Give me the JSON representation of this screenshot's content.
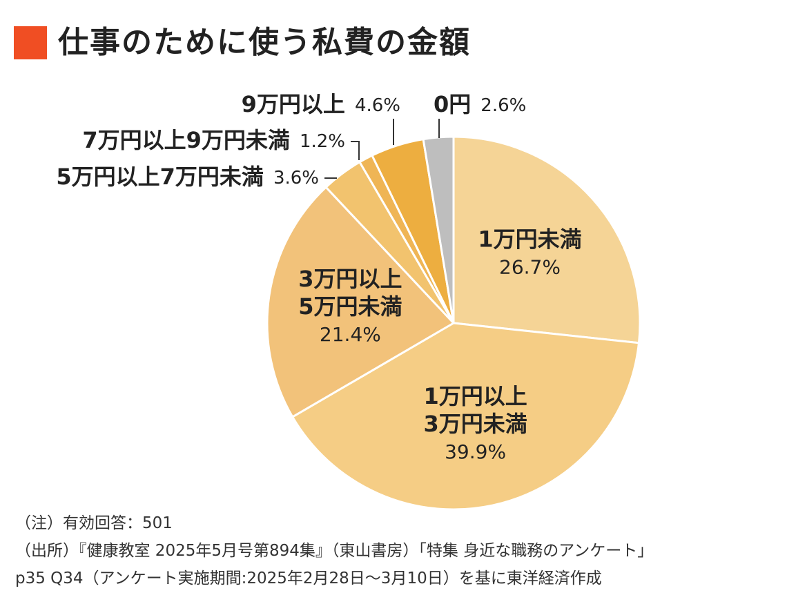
{
  "title": "仕事のために使う私費の金額",
  "colors": {
    "title_marker": "#F04E23",
    "slice_lightest": "#F5D496",
    "slice_light": "#F5CD85",
    "slice_mid": "#F2C27A",
    "slice_midorange": "#F2C36E",
    "slice_orange": "#EFB555",
    "slice_deep": "#EDAE40",
    "slice_gray": "#BEBEBE",
    "text": "#222222"
  },
  "chart_data": {
    "type": "pie",
    "title": "仕事のために使う私費の金額",
    "start": "12 o'clock, clockwise",
    "slices": [
      {
        "label": "1万円未満",
        "label_lines": [
          "1万円未満"
        ],
        "value": 26.7,
        "value_text": "26.7%",
        "color": "#F5D496",
        "label_position": "inside"
      },
      {
        "label": "1万円以上3万円未満",
        "label_lines": [
          "1万円以上",
          "3万円未満"
        ],
        "value": 39.9,
        "value_text": "39.9%",
        "color": "#F5CD85",
        "label_position": "inside"
      },
      {
        "label": "3万円以上5万円未満",
        "label_lines": [
          "3万円以上",
          "5万円未満"
        ],
        "value": 21.4,
        "value_text": "21.4%",
        "color": "#F2C27A",
        "label_position": "inside"
      },
      {
        "label": "5万円以上7万円未満",
        "label_lines": [
          "5万円以上7万円未満"
        ],
        "value": 3.6,
        "value_text": "3.6%",
        "color": "#F2C36E",
        "label_position": "outside"
      },
      {
        "label": "7万円以上9万円未満",
        "label_lines": [
          "7万円以上9万円未満"
        ],
        "value": 1.2,
        "value_text": "1.2%",
        "color": "#EFB555",
        "label_position": "outside"
      },
      {
        "label": "9万円以上",
        "label_lines": [
          "9万円以上"
        ],
        "value": 4.6,
        "value_text": "4.6%",
        "color": "#EDAE40",
        "label_position": "outside"
      },
      {
        "label": "0円",
        "label_lines": [
          "0円"
        ],
        "value": 2.6,
        "value_text": "2.6%",
        "color": "#BEBEBE",
        "label_position": "outside"
      }
    ]
  },
  "notes": [
    "（注）有効回答：501",
    "（出所）『健康教室 2025年5月号第894集』（東山書房）「特集 身近な職務のアンケート」",
    "p35 Q34（アンケート実施期間:2025年2月28日〜3月10日）を基に東洋経済作成"
  ]
}
